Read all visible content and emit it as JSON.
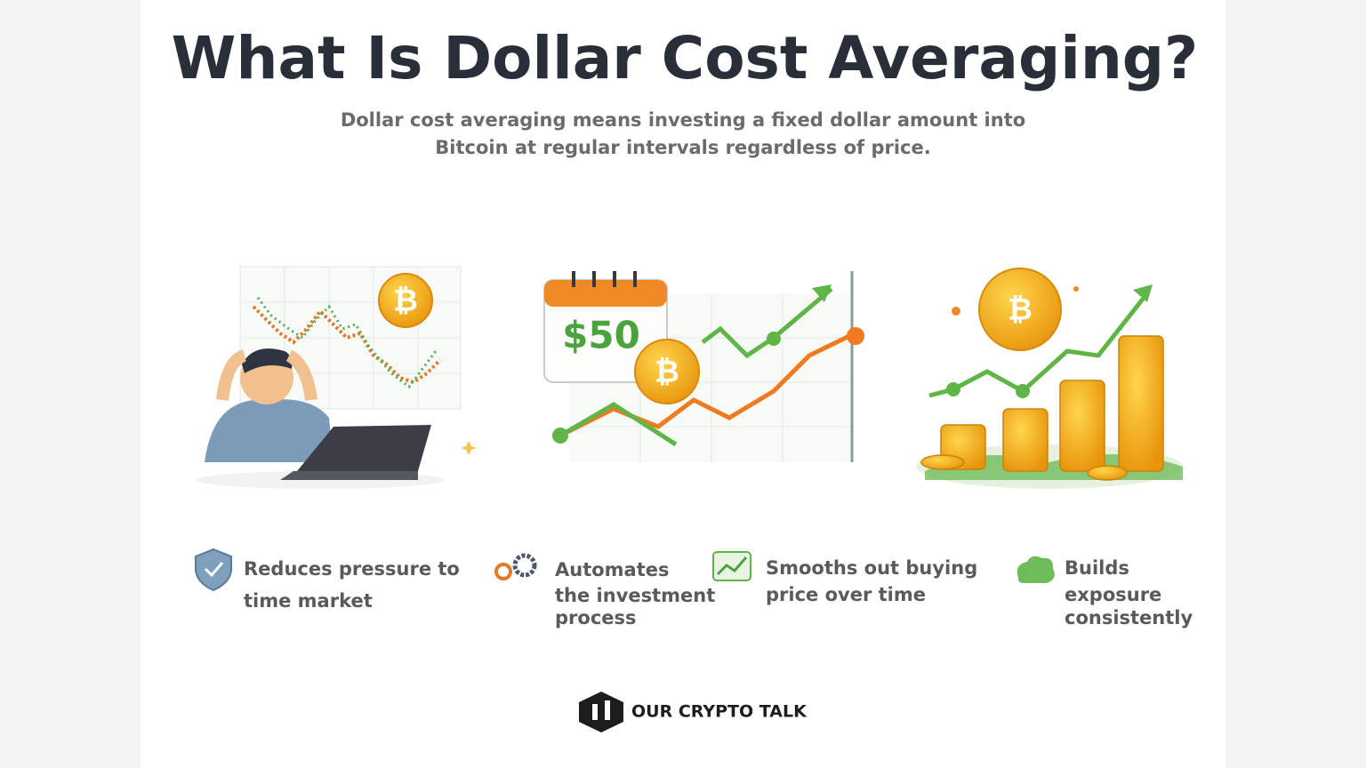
{
  "header": {
    "title": "What Is Dollar Cost Averaging?",
    "subtitle": [
      "Dollar cost averaging means investing a fixed dollar amount into",
      "Bitcoin at regular intervals regardless of price."
    ]
  },
  "illustrations": {
    "calendar_amount": "$50"
  },
  "benefits": [
    {
      "lines": [
        "Reduces pressure to",
        "time market"
      ]
    },
    {
      "lines": [
        "Automates",
        "the investment",
        "process"
      ]
    },
    {
      "lines": [
        "Smooths out buying",
        "price over time"
      ]
    },
    {
      "lines": [
        "Builds",
        "exposure",
        "consistently"
      ]
    }
  ],
  "footer": {
    "brand": "OUR CRYPTO TALK"
  }
}
